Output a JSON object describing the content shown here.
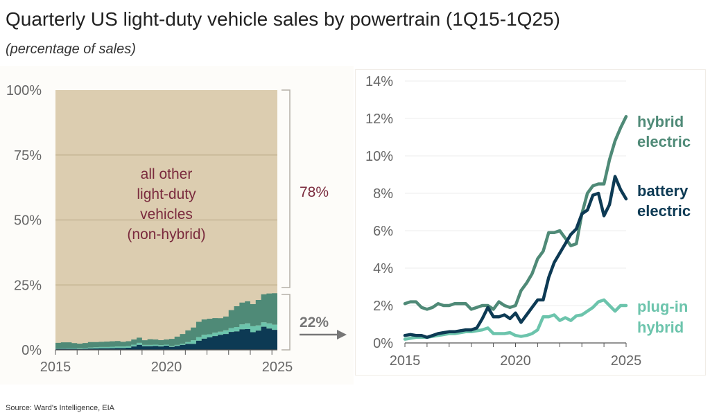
{
  "title": "Quarterly US light-duty vehicle sales by powertrain (1Q15-1Q25)",
  "subtitle": "(percentage of sales)",
  "source": "Source: Ward's Intelligence, EIA",
  "chart_data": [
    {
      "type": "area",
      "stacked": true,
      "x_start": "1Q15",
      "x_end": "1Q25",
      "x_ticks": [
        "2015",
        "2020",
        "2025"
      ],
      "y_ticks": [
        "0%",
        "25%",
        "50%",
        "75%",
        "100%"
      ],
      "ylim": [
        0,
        100
      ],
      "area_label": [
        "all other",
        "light-duty",
        "vehicles",
        "(non-hybrid)"
      ],
      "bracket_labels": {
        "upper": "78%",
        "lower": "22%"
      },
      "colors": {
        "other": "#dccdb0",
        "hybrid": "#4f8a77",
        "bev": "#0d3a54",
        "phev": "#6cc4ac",
        "label": "#7a2a3d"
      }
    },
    {
      "type": "line",
      "x_start": "1Q15",
      "x_end": "1Q25",
      "x_ticks": [
        "2015",
        "2020",
        "2025"
      ],
      "y_ticks": [
        "0%",
        "2%",
        "4%",
        "6%",
        "8%",
        "10%",
        "12%",
        "14%"
      ],
      "ylim": [
        0,
        14
      ],
      "grid": true,
      "series": [
        {
          "name": "hybrid electric",
          "label_lines": [
            "hybrid",
            "electric"
          ],
          "color": "#4f8a77",
          "values": [
            2.1,
            2.2,
            2.2,
            1.9,
            1.8,
            1.9,
            2.1,
            2.0,
            2.0,
            2.1,
            2.1,
            2.1,
            1.8,
            1.9,
            2.0,
            2.0,
            1.8,
            2.2,
            2.0,
            1.9,
            2.0,
            2.8,
            3.2,
            3.7,
            4.5,
            4.9,
            5.9,
            5.9,
            6.0,
            5.6,
            5.2,
            5.3,
            6.9,
            8.0,
            8.4,
            8.5,
            8.5,
            9.8,
            10.8,
            11.5,
            12.1
          ]
        },
        {
          "name": "battery electric",
          "label_lines": [
            "battery",
            "electric"
          ],
          "color": "#0d3a54",
          "values": [
            0.4,
            0.45,
            0.4,
            0.4,
            0.3,
            0.4,
            0.5,
            0.55,
            0.6,
            0.6,
            0.65,
            0.7,
            0.7,
            0.8,
            1.3,
            1.9,
            1.4,
            1.4,
            1.5,
            1.3,
            1.6,
            1.1,
            1.5,
            1.9,
            2.3,
            2.3,
            3.5,
            4.3,
            4.8,
            5.3,
            5.8,
            6.1,
            6.9,
            7.1,
            7.9,
            8.0,
            6.8,
            7.4,
            8.9,
            8.2,
            7.7
          ]
        },
        {
          "name": "plug-in hybrid",
          "label_lines": [
            "plug-in",
            "hybrid"
          ],
          "color": "#6cc4ac",
          "values": [
            0.2,
            0.25,
            0.3,
            0.3,
            0.3,
            0.35,
            0.4,
            0.45,
            0.5,
            0.5,
            0.55,
            0.6,
            0.6,
            0.65,
            0.7,
            0.8,
            0.5,
            0.5,
            0.5,
            0.55,
            0.4,
            0.35,
            0.4,
            0.5,
            0.7,
            1.4,
            1.4,
            1.5,
            1.2,
            1.35,
            1.2,
            1.45,
            1.5,
            1.7,
            1.9,
            2.2,
            2.3,
            2.0,
            1.7,
            2.0,
            2.0
          ]
        }
      ]
    }
  ]
}
